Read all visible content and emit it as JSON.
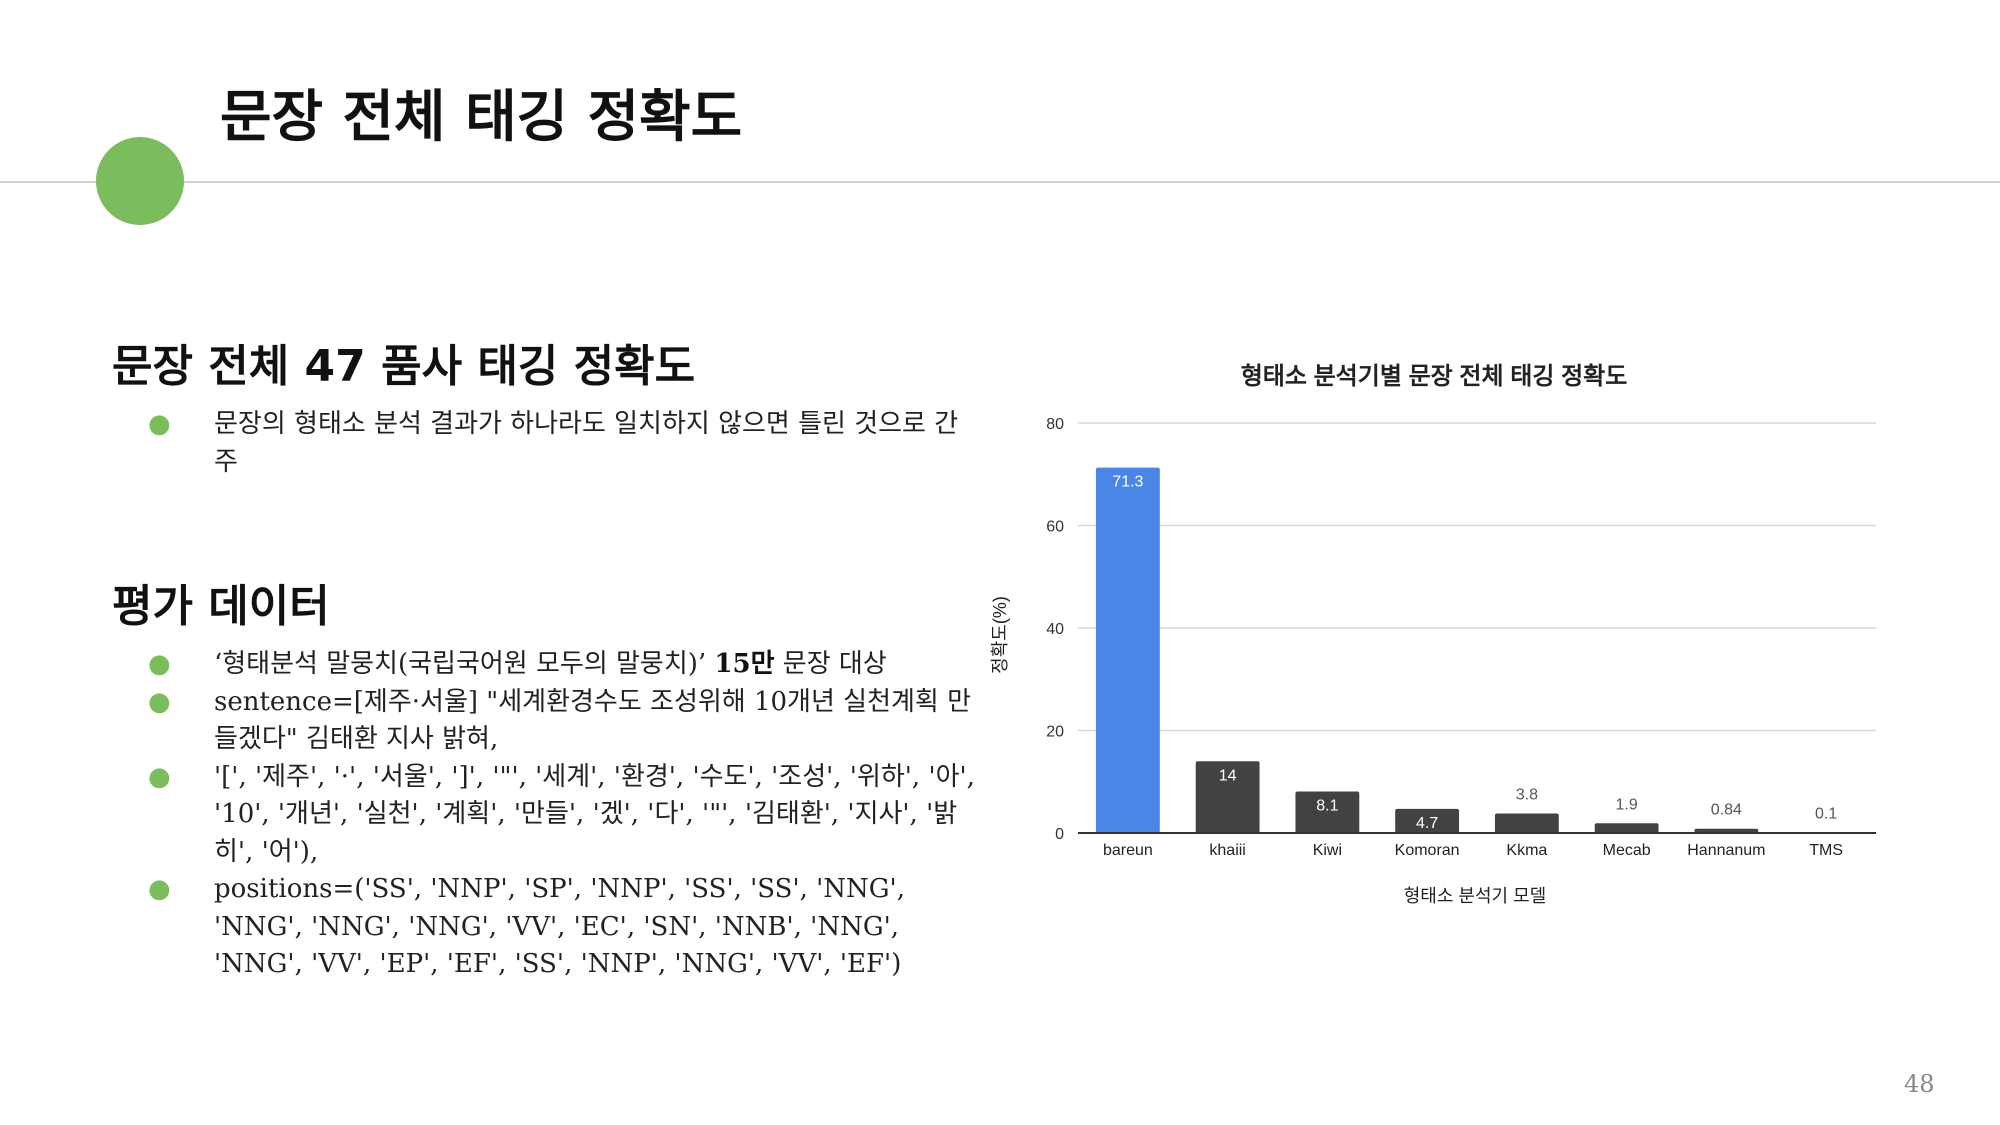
{
  "slide": {
    "title": "문장 전체 태깅 정확도",
    "page_number": "48",
    "accent_color": "#7bbd5d"
  },
  "section1": {
    "heading": "문장 전체 47 품사 태깅 정확도",
    "bullets": [
      "문장의 형태소 분석 결과가 하나라도 일치하지 않으면 틀린 것으로 간주"
    ]
  },
  "section2": {
    "heading": "평가 데이터",
    "bullet1": {
      "pre": "‘형태분석 말뭉치(국립국어원 모두의 말뭉치)’ ",
      "bold": "15만",
      "post": " 문장 대상"
    },
    "bullet2": "sentence=[제주·서울] \"세계환경수도 조성위해 10개년 실천계획 만들겠다\" 김태환 지사 밝혀,",
    "bullet3": "'[', '제주', '·', '서울', ']', '\"', '세계', '환경', '수도', '조성', '위하', '아', '10', '개년', '실천', '계획', '만들', '겠', '다', '\"', '김태환', '지사', '밝히', '어'),",
    "bullet4": "positions=('SS', 'NNP', 'SP', 'NNP', 'SS', 'SS', 'NNG', 'NNG', 'NNG', 'NNG', 'VV', 'EC', 'SN', 'NNB', 'NNG', 'NNG', 'VV', 'EP', 'EF', 'SS', 'NNP', 'NNG', 'VV', 'EF')"
  },
  "chart_data": {
    "type": "bar",
    "title": "형태소 분석기별 문장 전체 태깅 정확도",
    "xlabel": "형태소 분석기 모델",
    "ylabel": "정확도(%)",
    "ylim": [
      0,
      80
    ],
    "yticks": [
      0,
      20,
      40,
      60,
      80
    ],
    "grid": true,
    "categories": [
      "bareun",
      "khaiii",
      "Kiwi",
      "Komoran",
      "Kkma",
      "Mecab",
      "Hannanum",
      "TMS"
    ],
    "values": [
      71.3,
      14,
      8.1,
      4.7,
      3.8,
      1.9,
      0.84,
      0.1
    ],
    "labels": [
      "71.3",
      "14",
      "8.1",
      "4.7",
      "3.8",
      "1.9",
      "0.84",
      "0.1"
    ],
    "colors": {
      "highlight": "#4a86e8",
      "default": "#424242",
      "label_inside": "#ffffff",
      "label_outside": "#555555",
      "grid": "#d9d9d9",
      "axis": "#333333"
    }
  }
}
